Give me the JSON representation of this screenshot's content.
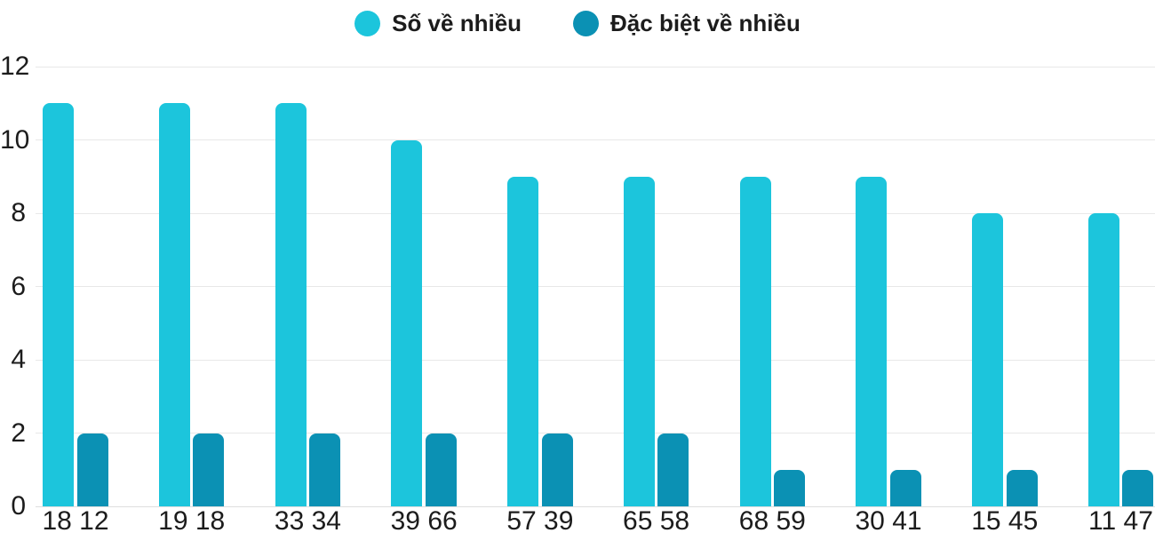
{
  "page": {
    "background": "#ffffff"
  },
  "colors": {
    "grid": "#e8e8e8",
    "baseline": "#dedede",
    "axis_text": "#1c1c1c",
    "legend_text": "#1c1c1c",
    "series_cyan": "#1cc5dc",
    "series_teal": "#0b91b4"
  },
  "chart_data": {
    "type": "bar",
    "title": "",
    "xlabel": "",
    "ylabel": "",
    "categories": [
      "18 12",
      "19 18",
      "33 34",
      "39 66",
      "57 39",
      "65 58",
      "68 59",
      "30 41",
      "15 45",
      "11 47"
    ],
    "series": [
      {
        "name": "Số về nhiều",
        "color": "#1cc5dc",
        "values": [
          11,
          11,
          11,
          10,
          9,
          9,
          9,
          9,
          8,
          8
        ]
      },
      {
        "name": "Đặc biệt về nhiều",
        "color": "#0b91b4",
        "values": [
          2,
          2,
          2,
          2,
          2,
          2,
          1,
          1,
          1,
          1
        ]
      }
    ],
    "ylim": [
      0,
      12
    ],
    "yticks": [
      0,
      2,
      4,
      6,
      8,
      10,
      12
    ],
    "grid": "horizontal",
    "legend_position": "top-center",
    "bar_corner_radius": 8
  }
}
